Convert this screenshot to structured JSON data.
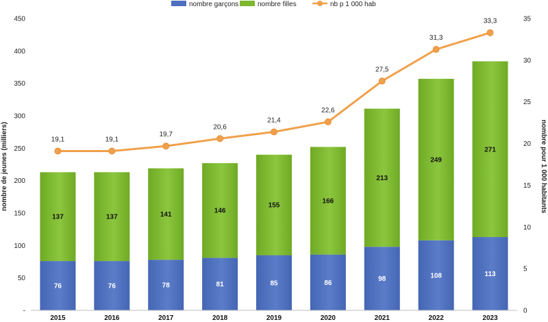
{
  "chart_data": {
    "type": "bar",
    "stacked": true,
    "categories": [
      "2015",
      "2016",
      "2017",
      "2018",
      "2019",
      "2020",
      "2021",
      "2022",
      "2023"
    ],
    "series": [
      {
        "name": "nombre garçons",
        "type": "bar",
        "axis": "left",
        "color": "#4E6FBF",
        "values": [
          76,
          76,
          78,
          81,
          85,
          86,
          98,
          108,
          113
        ]
      },
      {
        "name": "nombre filles",
        "type": "bar",
        "axis": "left",
        "color": "#7DB82E",
        "values": [
          137,
          137,
          141,
          146,
          155,
          166,
          213,
          249,
          271
        ]
      },
      {
        "name": "nb p 1 000 hab",
        "type": "line",
        "axis": "right",
        "color": "#F0A04B",
        "values": [
          19.1,
          19.1,
          19.7,
          20.6,
          21.4,
          22.6,
          27.5,
          31.3,
          33.3
        ],
        "labels": [
          "19,1",
          "19,1",
          "19,7",
          "20,6",
          "21,4",
          "22,6",
          "27,5",
          "31,3",
          "33,3"
        ]
      }
    ],
    "ylabel": "nombre de jeunes (milliers)",
    "y2label": "nombre pour 1 000 habitants",
    "ylim": [
      0,
      450
    ],
    "y2lim": [
      0,
      35
    ],
    "yticks": [
      "-",
      "50",
      "100",
      "150",
      "200",
      "250",
      "300",
      "350",
      "400",
      "450"
    ],
    "y2ticks": [
      "0",
      "5",
      "10",
      "15",
      "20",
      "25",
      "30",
      "35"
    ],
    "grid": false,
    "legend_position": "top-center"
  }
}
